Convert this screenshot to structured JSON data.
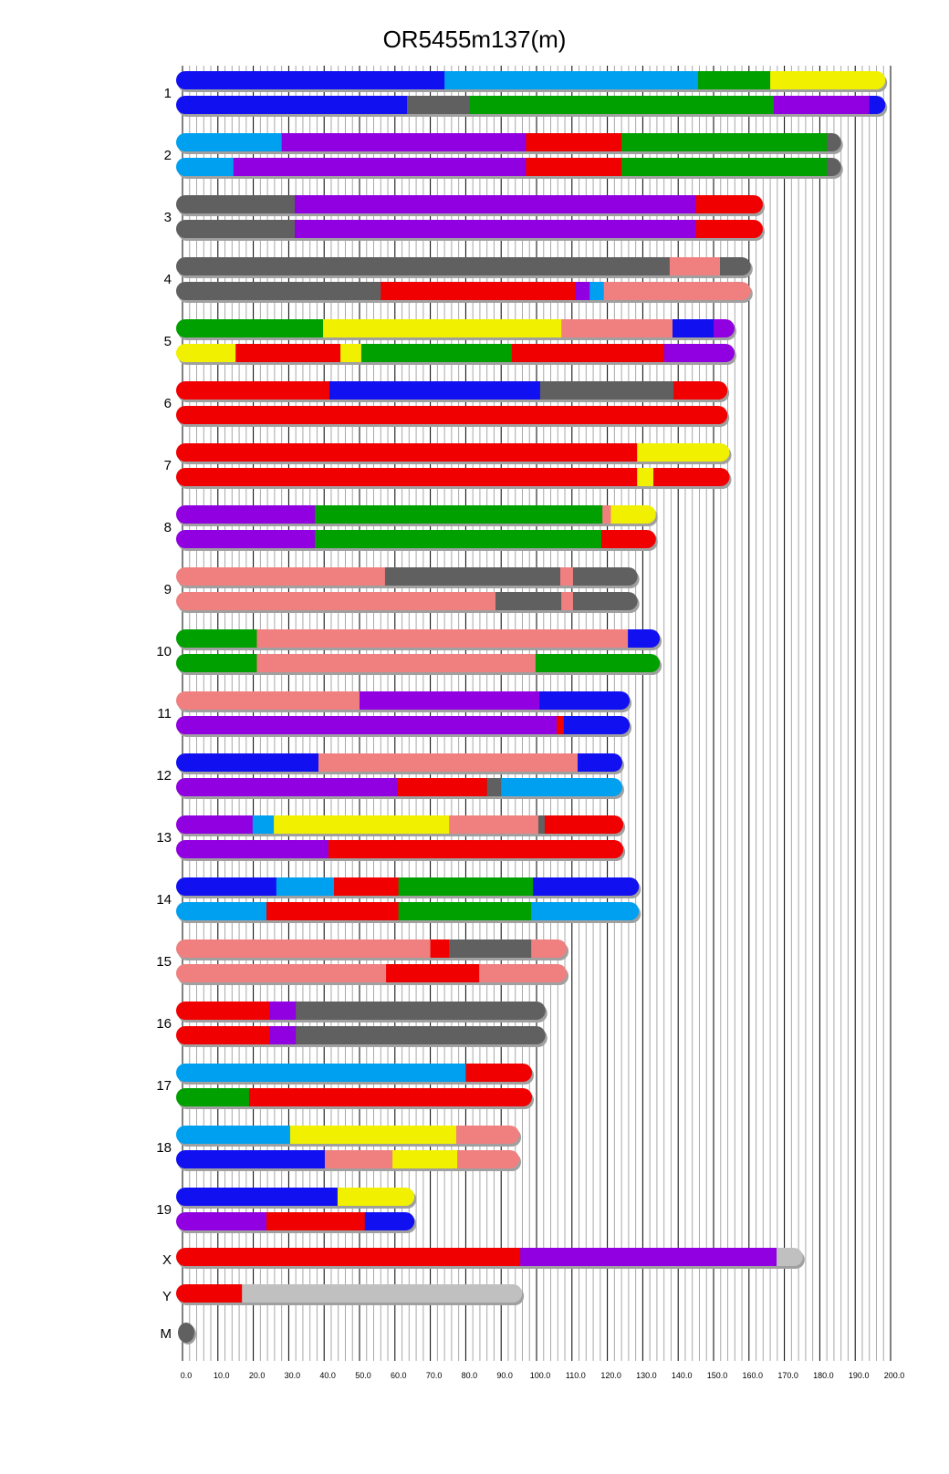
{
  "chart_data": {
    "type": "bar",
    "title": "OR5455m137(m)",
    "xlabel": "",
    "ylabel": "",
    "xlim": [
      0,
      200
    ],
    "x_ticks": [
      "0.0",
      "10.0",
      "20.0",
      "30.0",
      "40.0",
      "50.0",
      "60.0",
      "70.0",
      "80.0",
      "90.0",
      "100.0",
      "110.0",
      "120.0",
      "130.0",
      "140.0",
      "150.0",
      "160.0",
      "170.0",
      "180.0",
      "190.0",
      "200.0"
    ],
    "grid": true,
    "colors": {
      "blue": "#1010f0",
      "lightblue": "#00a0f0",
      "green": "#00a000",
      "yellow": "#f0f000",
      "purple": "#9000e0",
      "red": "#f00000",
      "salmon": "#f08080",
      "grey": "#606060",
      "lightgrey": "#c0c0c0"
    },
    "chromosomes": [
      {
        "name": "1",
        "bars": [
          [
            [
              "blue",
              74
            ],
            [
              "lightblue",
              145.6
            ],
            [
              "green",
              166
            ],
            [
              "yellow",
              198
            ]
          ],
          [
            [
              "blue",
              63.4
            ],
            [
              "grey",
              81
            ],
            [
              "green",
              167
            ],
            [
              "purple",
              194
            ],
            [
              "blue",
              198
            ]
          ]
        ]
      },
      {
        "name": "2",
        "bars": [
          [
            [
              "lightblue",
              28
            ],
            [
              "purple",
              97
            ],
            [
              "red",
              124
            ],
            [
              "green",
              182
            ],
            [
              "grey",
              185.5
            ]
          ],
          [
            [
              "lightblue",
              14.4
            ],
            [
              "purple",
              97
            ],
            [
              "red",
              124
            ],
            [
              "green",
              182
            ],
            [
              "grey",
              185.5
            ]
          ]
        ]
      },
      {
        "name": "3",
        "bars": [
          [
            [
              "grey",
              31.7
            ],
            [
              "purple",
              145
            ],
            [
              "red",
              163.4
            ]
          ],
          [
            [
              "grey",
              31.7
            ],
            [
              "purple",
              145
            ],
            [
              "red",
              163.4
            ]
          ]
        ]
      },
      {
        "name": "4",
        "bars": [
          [
            [
              "grey",
              137.6
            ],
            [
              "salmon",
              151.8
            ],
            [
              "grey",
              160
            ]
          ],
          [
            [
              "grey",
              56
            ],
            [
              "red",
              111
            ],
            [
              "purple",
              115
            ],
            [
              "lightblue",
              119
            ],
            [
              "salmon",
              160
            ]
          ]
        ]
      },
      {
        "name": "5",
        "bars": [
          [
            [
              "green",
              39.7
            ],
            [
              "yellow",
              107
            ],
            [
              "salmon",
              138.4
            ],
            [
              "blue",
              150
            ],
            [
              "purple",
              155.4
            ]
          ],
          [
            [
              "yellow",
              15
            ],
            [
              "red",
              44.6
            ],
            [
              "yellow",
              50.5
            ],
            [
              "green",
              93
            ],
            [
              "red",
              136
            ],
            [
              "purple",
              155.4
            ]
          ]
        ]
      },
      {
        "name": "6",
        "bars": [
          [
            [
              "red",
              41.5
            ],
            [
              "blue",
              101
            ],
            [
              "grey",
              138.7
            ],
            [
              "red",
              153.4
            ]
          ],
          [
            [
              "red",
              153.4
            ]
          ]
        ]
      },
      {
        "name": "7",
        "bars": [
          [
            [
              "red",
              128.4
            ],
            [
              "yellow",
              154
            ]
          ],
          [
            [
              "red",
              128.4
            ],
            [
              "yellow",
              133
            ],
            [
              "red",
              154
            ]
          ]
        ]
      },
      {
        "name": "8",
        "bars": [
          [
            [
              "purple",
              37.4
            ],
            [
              "green",
              118.6
            ],
            [
              "salmon",
              121
            ],
            [
              "yellow",
              133.2
            ]
          ],
          [
            [
              "purple",
              37.4
            ],
            [
              "green",
              118.3
            ],
            [
              "red",
              133.2
            ]
          ]
        ]
      },
      {
        "name": "9",
        "bars": [
          [
            [
              "salmon",
              57.2
            ],
            [
              "grey",
              106.7
            ],
            [
              "salmon",
              110.3
            ],
            [
              "grey",
              128
            ]
          ],
          [
            [
              "salmon",
              88.4
            ],
            [
              "grey",
              107
            ],
            [
              "salmon",
              110.3
            ],
            [
              "grey",
              128
            ]
          ]
        ]
      },
      {
        "name": "10",
        "bars": [
          [
            [
              "green",
              21
            ],
            [
              "salmon",
              125.8
            ],
            [
              "blue",
              134.3
            ]
          ],
          [
            [
              "green",
              21
            ],
            [
              "salmon",
              99.7
            ],
            [
              "green",
              134.3
            ]
          ]
        ]
      },
      {
        "name": "11",
        "bars": [
          [
            [
              "salmon",
              50
            ],
            [
              "purple",
              100.8
            ],
            [
              "blue",
              125.8
            ]
          ],
          [
            [
              "purple",
              105.7
            ],
            [
              "red",
              107.7
            ],
            [
              "blue",
              125.8
            ]
          ]
        ]
      },
      {
        "name": "12",
        "bars": [
          [
            [
              "blue",
              38.4
            ],
            [
              "salmon",
              111.6
            ],
            [
              "blue",
              123.7
            ]
          ],
          [
            [
              "purple",
              60.6
            ],
            [
              "red",
              86
            ],
            [
              "grey",
              90
            ],
            [
              "lightblue",
              123.7
            ]
          ]
        ]
      },
      {
        "name": "13",
        "bars": [
          [
            [
              "purple",
              19.8
            ],
            [
              "lightblue",
              25.8
            ],
            [
              "yellow",
              75.3
            ],
            [
              "salmon",
              100.5
            ],
            [
              "grey",
              102.3
            ],
            [
              "red",
              124
            ]
          ],
          [
            [
              "purple",
              41.2
            ],
            [
              "red",
              124
            ]
          ]
        ]
      },
      {
        "name": "14",
        "bars": [
          [
            [
              "blue",
              26.5
            ],
            [
              "lightblue",
              42.8
            ],
            [
              "red",
              61
            ],
            [
              "green",
              99
            ],
            [
              "blue",
              128.4
            ]
          ],
          [
            [
              "lightblue",
              23.7
            ],
            [
              "red",
              61
            ],
            [
              "green",
              98.5
            ],
            [
              "lightblue",
              128.4
            ]
          ]
        ]
      },
      {
        "name": "15",
        "bars": [
          [
            [
              "salmon",
              70
            ],
            [
              "red",
              75.3
            ],
            [
              "grey",
              98.5
            ],
            [
              "salmon",
              108
            ]
          ],
          [
            [
              "salmon",
              57.5
            ],
            [
              "red",
              83.8
            ],
            [
              "salmon",
              108
            ]
          ]
        ]
      },
      {
        "name": "16",
        "bars": [
          [
            [
              "red",
              24.5
            ],
            [
              "purple",
              32
            ],
            [
              "grey",
              102
            ]
          ],
          [
            [
              "red",
              24.5
            ],
            [
              "purple",
              32
            ],
            [
              "grey",
              102
            ]
          ]
        ]
      },
      {
        "name": "17",
        "bars": [
          [
            [
              "lightblue",
              80
            ],
            [
              "red",
              98.2
            ]
          ],
          [
            [
              "green",
              18.8
            ],
            [
              "red",
              98.2
            ]
          ]
        ]
      },
      {
        "name": "18",
        "bars": [
          [
            [
              "lightblue",
              30.4
            ],
            [
              "yellow",
              77.3
            ],
            [
              "salmon",
              94.6
            ]
          ],
          [
            [
              "blue",
              40.2
            ],
            [
              "salmon",
              59.3
            ],
            [
              "yellow",
              77.6
            ],
            [
              "salmon",
              94.6
            ]
          ]
        ]
      },
      {
        "name": "19",
        "bars": [
          [
            [
              "blue",
              43.8
            ],
            [
              "yellow",
              65
            ]
          ],
          [
            [
              "purple",
              23.7
            ],
            [
              "red",
              51.5
            ],
            [
              "blue",
              65
            ]
          ]
        ]
      },
      {
        "name": "X",
        "bars": [
          [
            [
              "red",
              95.4
            ],
            [
              "purple",
              167.8
            ],
            [
              "lightgrey",
              174.7
            ]
          ]
        ]
      },
      {
        "name": "Y",
        "bars": [
          [
            [
              "red",
              16.8
            ],
            [
              "lightgrey",
              95.4
            ]
          ]
        ]
      },
      {
        "name": "M",
        "bars": [
          [
            [
              "grey",
              1
            ]
          ]
        ]
      }
    ]
  }
}
